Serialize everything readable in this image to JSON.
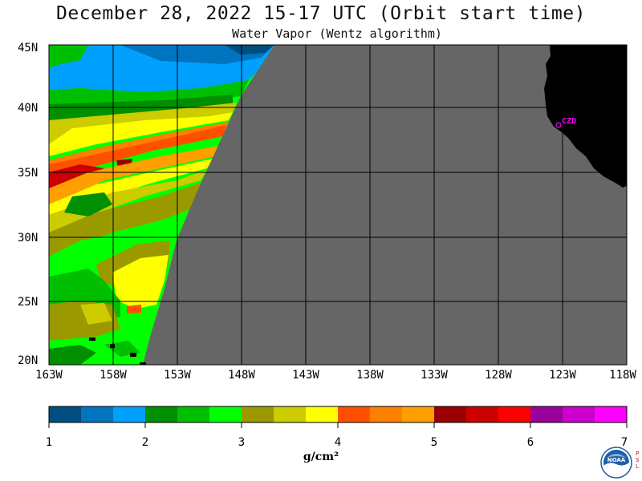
{
  "title": "December 28, 2022  15-17 UTC  (Orbit start time)",
  "subtitle": "Water Vapor (Wentz algorithm)",
  "lat_labels": [
    "45N",
    "40N",
    "35N",
    "30N",
    "25N",
    "20N"
  ],
  "lon_labels": [
    "163W",
    "158W",
    "153W",
    "148W",
    "143W",
    "138W",
    "133W",
    "128W",
    "123W",
    "118W"
  ],
  "station_label": "CZD",
  "colorbar": {
    "ticks": [
      "1",
      "2",
      "3",
      "4",
      "5",
      "6",
      "7"
    ],
    "unit": "g/cm²",
    "colors": [
      "#004d7f",
      "#0074bf",
      "#00a0ff",
      "#008f00",
      "#00bf00",
      "#00ff00",
      "#9a9a00",
      "#cccc00",
      "#ffff00",
      "#ff5000",
      "#ff7f00",
      "#ffa000",
      "#9a0000",
      "#cc0000",
      "#ff0000",
      "#9a009a",
      "#cc00cc",
      "#ff00ff"
    ]
  },
  "legend_colors": {
    "no_data": "#666666",
    "land": "#000000"
  },
  "logo_text": "NOAA",
  "psl_text": "PSL"
}
